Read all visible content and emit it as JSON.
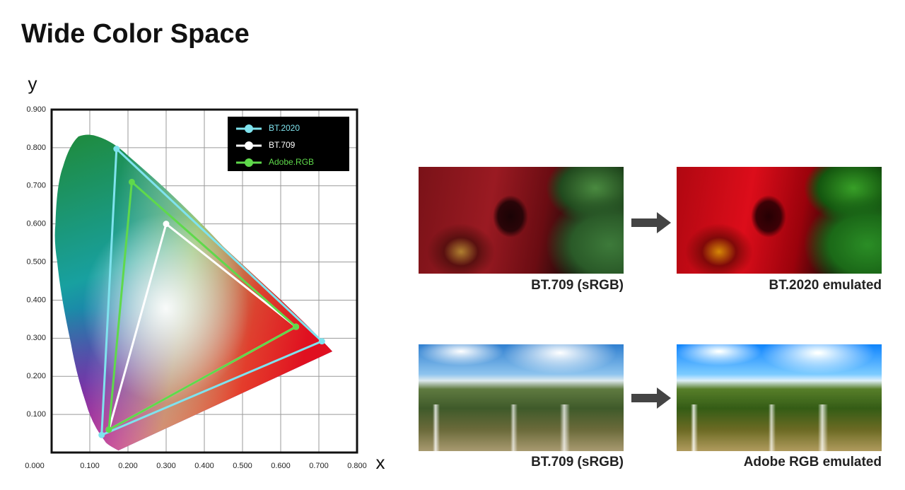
{
  "chart_data": {
    "type": "scatter",
    "title": "Wide Color Space",
    "x_label": "x",
    "y_label": "y",
    "series": [
      {
        "name": "BT.2020",
        "color": "#7fe3ee",
        "x": [
          0.708,
          0.17,
          0.131
        ],
        "values": [
          0.292,
          0.797,
          0.046
        ]
      },
      {
        "name": "BT.709",
        "color": "#ffffff",
        "x": [
          0.64,
          0.3,
          0.15
        ],
        "values": [
          0.33,
          0.6,
          0.06
        ]
      },
      {
        "name": "Adobe.RGB",
        "color": "#5fd94b",
        "x": [
          0.64,
          0.21,
          0.15
        ],
        "values": [
          0.33,
          0.71,
          0.06
        ]
      }
    ],
    "xlim": [
      0,
      0.8
    ],
    "ylim": [
      0,
      0.9
    ],
    "xticks": [
      {
        "value": 0,
        "label": "0.000"
      },
      {
        "value": 0.1,
        "label": "0.100"
      },
      {
        "value": 0.2,
        "label": "0.200"
      },
      {
        "value": 0.3,
        "label": "0.300"
      },
      {
        "value": 0.4,
        "label": "0.400"
      },
      {
        "value": 0.5,
        "label": "0.500"
      },
      {
        "value": 0.6,
        "label": "0.600"
      },
      {
        "value": 0.7,
        "label": "0.700"
      },
      {
        "value": 0.8,
        "label": "0.800"
      }
    ],
    "yticks": [
      {
        "value": 0.1,
        "label": "0.100"
      },
      {
        "value": 0.2,
        "label": "0.200"
      },
      {
        "value": 0.3,
        "label": "0.300"
      },
      {
        "value": 0.4,
        "label": "0.400"
      },
      {
        "value": 0.5,
        "label": "0.500"
      },
      {
        "value": 0.6,
        "label": "0.600"
      },
      {
        "value": 0.7,
        "label": "0.700"
      },
      {
        "value": 0.8,
        "label": "0.800"
      },
      {
        "value": 0.9,
        "label": "0.900"
      }
    ],
    "grid": true,
    "legend": "upper right"
  },
  "panels": [
    {
      "caption": "BT.709 (sRGB)"
    },
    {
      "caption": "BT.2020 emulated"
    },
    {
      "caption": "BT.709 (sRGB)"
    },
    {
      "caption": "Adobe RGB emulated"
    }
  ]
}
